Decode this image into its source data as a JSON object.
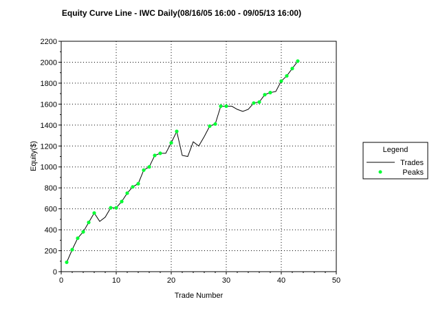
{
  "colors": {
    "line": "#000000",
    "peak": "#00ff33",
    "grid": "#000000",
    "background": "#ffffff"
  },
  "chart_data": {
    "type": "line",
    "title": "Equity Curve Line - IWC Daily(08/16/05 16:00 - 09/05/13 16:00)",
    "xlabel": "Trade Number",
    "ylabel": "Equity($)",
    "xlim": [
      0,
      50
    ],
    "ylim": [
      0,
      2200
    ],
    "xticks": [
      "0",
      "10",
      "20",
      "30",
      "40",
      "50"
    ],
    "yticks": [
      "0",
      "200",
      "400",
      "600",
      "800",
      "1000",
      "1200",
      "1400",
      "1600",
      "1800",
      "2000",
      "2200"
    ],
    "grid": true,
    "legend": {
      "title": "Legend",
      "position": "right",
      "entries": [
        "Trades",
        "Peaks"
      ]
    },
    "series": [
      {
        "name": "Trades",
        "x": [
          1,
          2,
          3,
          4,
          5,
          6,
          7,
          8,
          9,
          10,
          11,
          12,
          13,
          14,
          15,
          16,
          17,
          18,
          19,
          20,
          21,
          22,
          23,
          24,
          25,
          26,
          27,
          28,
          29,
          30,
          31,
          32,
          33,
          34,
          35,
          36,
          37,
          38,
          39,
          40,
          41,
          42,
          43
        ],
        "y": [
          90,
          210,
          320,
          380,
          470,
          560,
          480,
          520,
          610,
          610,
          670,
          750,
          810,
          840,
          970,
          1000,
          1110,
          1130,
          1130,
          1230,
          1340,
          1110,
          1100,
          1240,
          1200,
          1290,
          1390,
          1410,
          1580,
          1580,
          1580,
          1550,
          1530,
          1550,
          1610,
          1620,
          1690,
          1710,
          1720,
          1820,
          1870,
          1940,
          2010
        ]
      },
      {
        "name": "Peaks",
        "x": [
          1,
          2,
          3,
          4,
          5,
          6,
          9,
          10,
          11,
          12,
          13,
          14,
          15,
          16,
          17,
          18,
          20,
          21,
          27,
          28,
          29,
          30,
          35,
          36,
          37,
          38,
          40,
          41,
          42,
          43
        ],
        "y": [
          90,
          210,
          320,
          380,
          470,
          560,
          610,
          610,
          670,
          750,
          810,
          840,
          970,
          1000,
          1110,
          1130,
          1230,
          1340,
          1390,
          1410,
          1580,
          1580,
          1610,
          1620,
          1690,
          1710,
          1820,
          1870,
          1940,
          2010
        ]
      }
    ]
  }
}
